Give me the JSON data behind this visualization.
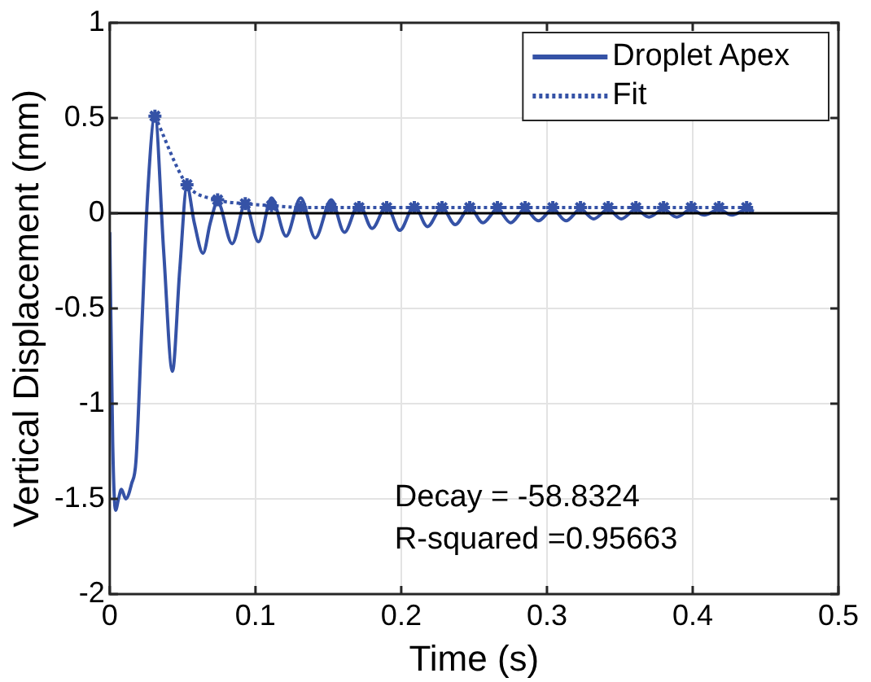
{
  "chart_data": {
    "type": "line",
    "xlabel": "Time (s)",
    "ylabel": "Vertical Displacement (mm)",
    "xlim": [
      0,
      0.5
    ],
    "xticks": [
      0,
      0.1,
      0.2,
      0.3,
      0.4,
      0.5
    ],
    "ylim": [
      -2,
      1
    ],
    "yticks": [
      -2,
      -1.5,
      -1,
      -0.5,
      0,
      0.5,
      1
    ],
    "grid": true,
    "legend": "top right",
    "series": [
      {
        "name": "Droplet Apex",
        "color": "#3552a6",
        "line_style": "solid",
        "marker": "none",
        "x": [
          0,
          0.002,
          0.004,
          0.006,
          0.008,
          0.011,
          0.015,
          0.018,
          0.022,
          0.026,
          0.031,
          0.037,
          0.043,
          0.048,
          0.053,
          0.058,
          0.064,
          0.069,
          0.074,
          0.084,
          0.093,
          0.102,
          0.111,
          0.121,
          0.131,
          0.141,
          0.152,
          0.161,
          0.171,
          0.18,
          0.19,
          0.199,
          0.209,
          0.218,
          0.228,
          0.237,
          0.247,
          0.256,
          0.266,
          0.275,
          0.285,
          0.294,
          0.304,
          0.313,
          0.323,
          0.332,
          0.342,
          0.351,
          0.361,
          0.37,
          0.38,
          0.389,
          0.399,
          0.408,
          0.418,
          0.427,
          0.437,
          0.442
        ],
        "values": [
          -0.1,
          -1.2,
          -1.56,
          -1.5,
          -1.45,
          -1.5,
          -1.42,
          -1.3,
          -0.6,
          0.1,
          0.51,
          -0.2,
          -0.83,
          -0.3,
          0.14,
          -0.05,
          -0.21,
          -0.05,
          0.06,
          -0.16,
          0.05,
          -0.15,
          0.08,
          -0.12,
          0.08,
          -0.13,
          0.07,
          -0.1,
          0.05,
          -0.08,
          0.04,
          -0.09,
          0.04,
          -0.07,
          0.03,
          -0.06,
          0.03,
          -0.05,
          0.02,
          -0.05,
          0.02,
          -0.04,
          0.02,
          -0.04,
          0.02,
          -0.03,
          0.02,
          -0.03,
          0.02,
          -0.02,
          0.02,
          -0.02,
          0.02,
          -0.01,
          0.02,
          -0.01,
          0.02,
          0.01
        ]
      },
      {
        "name": "Fit",
        "color": "#3552a6",
        "line_style": "dotted",
        "marker": "cross",
        "x": [
          0.031,
          0.053,
          0.074,
          0.093,
          0.111,
          0.131,
          0.152,
          0.171,
          0.19,
          0.209,
          0.228,
          0.247,
          0.266,
          0.285,
          0.304,
          0.323,
          0.342,
          0.361,
          0.38,
          0.399,
          0.418,
          0.437
        ],
        "values": [
          0.51,
          0.15,
          0.07,
          0.05,
          0.04,
          0.03,
          0.03,
          0.03,
          0.03,
          0.03,
          0.03,
          0.03,
          0.03,
          0.03,
          0.03,
          0.03,
          0.03,
          0.03,
          0.03,
          0.03,
          0.03,
          0.03
        ]
      }
    ],
    "ref_lines": [
      {
        "axis": "y",
        "value": 0,
        "color": "#000000",
        "line_style": "solid"
      }
    ],
    "annotations": [
      "Decay = -58.8324",
      "R-squared =0.95663"
    ]
  }
}
